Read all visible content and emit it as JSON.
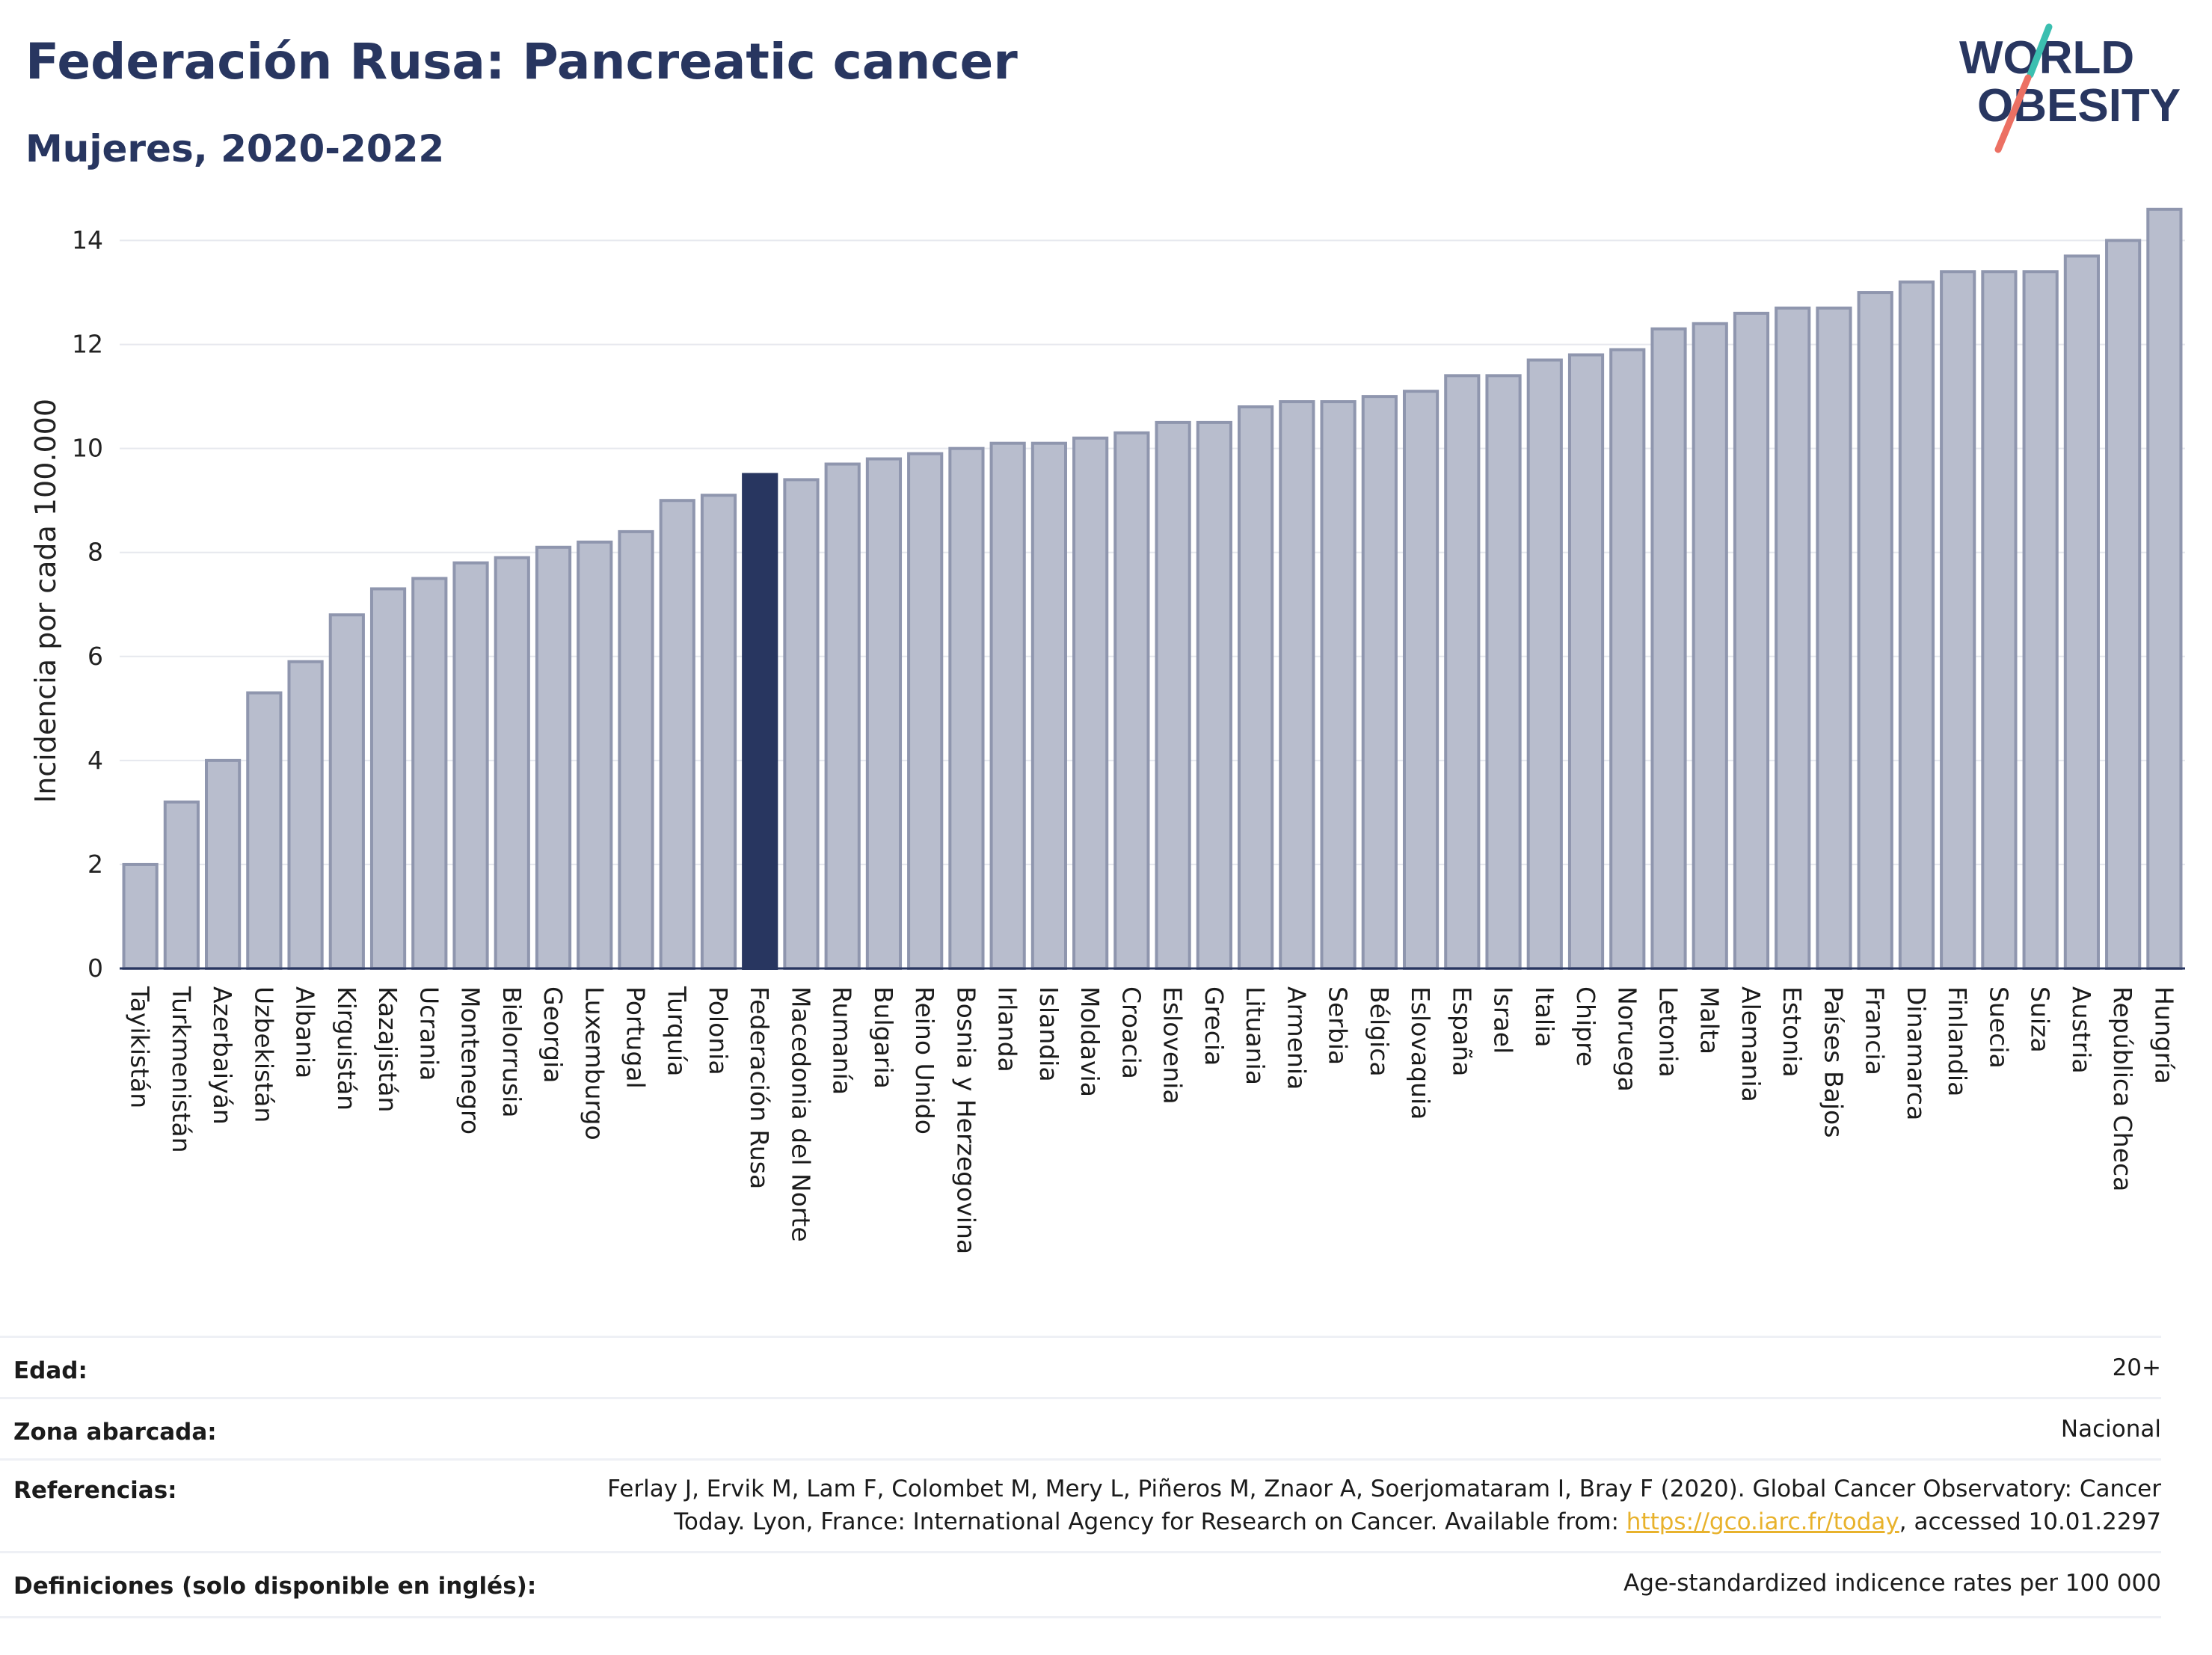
{
  "header": {
    "title": "Federación Rusa: Pancreatic cancer",
    "subtitle": "Mujeres, 2020-2022"
  },
  "logo": {
    "line1": "WORLD",
    "line2": "OBESITY",
    "icon": "world-obesity-logo"
  },
  "colors": {
    "bar_default": "#b8bdcd",
    "bar_border": "#8f96ae",
    "bar_highlight": "#283660",
    "title": "#283660",
    "link": "#e8b22c"
  },
  "chart_data": {
    "type": "bar",
    "title": "Federación Rusa: Pancreatic cancer",
    "subtitle": "Mujeres, 2020-2022",
    "ylabel": "Incidencia por cada 100.000",
    "xlabel": "",
    "ylim": [
      0,
      15
    ],
    "yticks": [
      0,
      2,
      4,
      6,
      8,
      10,
      12,
      14
    ],
    "grid": true,
    "highlight": "Federación Rusa",
    "categories": [
      "Tayikistán",
      "Turkmenistán",
      "Azerbaiyán",
      "Uzbekistán",
      "Albania",
      "Kirguistán",
      "Kazajistán",
      "Ucrania",
      "Montenegro",
      "Bielorrusia",
      "Georgia",
      "Luxemburgo",
      "Portugal",
      "Turquía",
      "Polonia",
      "Federación Rusa",
      "Macedonia del Norte",
      "Rumanía",
      "Bulgaria",
      "Reino Unido",
      "Bosnia y Herzegovina",
      "Irlanda",
      "Islandia",
      "Moldavia",
      "Croacia",
      "Eslovenia",
      "Grecia",
      "Lituania",
      "Armenia",
      "Serbia",
      "Bélgica",
      "Eslovaquia",
      "España",
      "Israel",
      "Italia",
      "Chipre",
      "Noruega",
      "Letonia",
      "Malta",
      "Alemania",
      "Estonia",
      "Países Bajos",
      "Francia",
      "Dinamarca",
      "Finlandia",
      "Suecia",
      "Suiza",
      "Austria",
      "República Checa",
      "Hungría"
    ],
    "values": [
      2.0,
      3.2,
      4.0,
      5.3,
      5.9,
      6.8,
      7.3,
      7.5,
      7.8,
      7.9,
      8.1,
      8.2,
      8.4,
      9.0,
      9.1,
      9.5,
      9.4,
      9.7,
      9.8,
      9.9,
      10.0,
      10.1,
      10.1,
      10.2,
      10.3,
      10.5,
      10.5,
      10.8,
      10.9,
      10.9,
      11.0,
      11.1,
      11.4,
      11.4,
      11.7,
      11.8,
      11.9,
      12.3,
      12.4,
      12.6,
      12.7,
      12.7,
      13.0,
      13.2,
      13.4,
      13.4,
      13.4,
      13.7,
      14.0,
      14.6
    ]
  },
  "meta": {
    "age_label": "Edad:",
    "age_value": "20+",
    "zone_label": "Zona abarcada:",
    "zone_value": "Nacional",
    "ref_label": "Referencias:",
    "ref_line1": "Ferlay J, Ervik M, Lam F, Colombet M, Mery L, Piñeros M, Znaor A, Soerjomataram I, Bray F (2020). Global Cancer Observatory: Cancer",
    "ref_line2_pre": "Today. Lyon, France: International Agency for Research on Cancer. Available from: ",
    "ref_link": "https://gco.iarc.fr/today",
    "ref_line2_post": ", accessed 10.01.2297",
    "def_label": "Definiciones (solo disponible en inglés):",
    "def_value": "Age-standardized indicence rates per 100 000"
  }
}
